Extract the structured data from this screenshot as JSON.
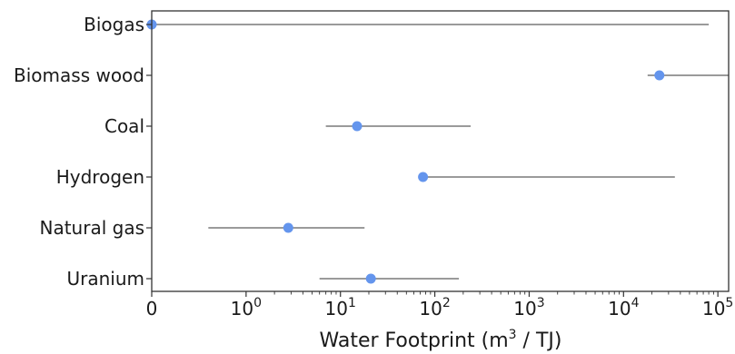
{
  "chart_data": {
    "type": "scatter",
    "xlabel_main": "Water Footprint (m",
    "xlabel_sup": "3",
    "xlabel_end": " / TJ)",
    "xscale": "symlog",
    "xlim": [
      0,
      130000
    ],
    "x_ticks": [
      {
        "value": 0,
        "base": "0",
        "exp": ""
      },
      {
        "value": 1,
        "base": "10",
        "exp": "0"
      },
      {
        "value": 10,
        "base": "10",
        "exp": "1"
      },
      {
        "value": 100,
        "base": "10",
        "exp": "2"
      },
      {
        "value": 1000,
        "base": "10",
        "exp": "3"
      },
      {
        "value": 10000,
        "base": "10",
        "exp": "4"
      },
      {
        "value": 100000,
        "base": "10",
        "exp": "5"
      }
    ],
    "colors": {
      "point": "#6495ED",
      "range": "#8c8c8c"
    },
    "categories": [
      "Biogas",
      "Biomass wood",
      "Coal",
      "Hydrogen",
      "Natural gas",
      "Uranium"
    ],
    "points": [
      {
        "category": "Biogas",
        "value": 0,
        "min": 0,
        "max": 80000
      },
      {
        "category": "Biomass wood",
        "value": 24000,
        "min": 18000,
        "max": 130000
      },
      {
        "category": "Coal",
        "value": 15,
        "min": 7,
        "max": 240
      },
      {
        "category": "Hydrogen",
        "value": 75,
        "min": 75,
        "max": 35000
      },
      {
        "category": "Natural gas",
        "value": 2.8,
        "min": 0.6,
        "max": 18
      },
      {
        "category": "Uranium",
        "value": 21,
        "min": 6,
        "max": 180
      }
    ]
  }
}
